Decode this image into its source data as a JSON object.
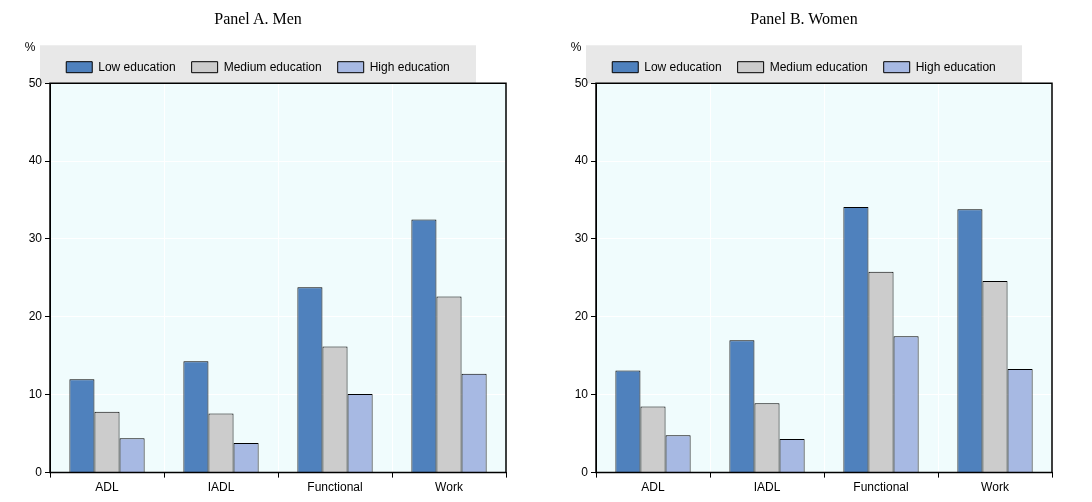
{
  "chart_data": [
    {
      "type": "bar",
      "title": "Panel A. Men",
      "ylabel": "%",
      "categories": [
        "ADL",
        "IADL",
        "Functional",
        "Work"
      ],
      "series": [
        {
          "name": "Low education",
          "color": "#4f81bd",
          "values": [
            12,
            14.3,
            23.8,
            32.5
          ]
        },
        {
          "name": "Medium education",
          "color": "#cccccc",
          "values": [
            7.8,
            7.6,
            16.2,
            22.6
          ]
        },
        {
          "name": "High education",
          "color": "#a7b9e3",
          "values": [
            4.4,
            3.8,
            10.1,
            12.7
          ]
        }
      ],
      "ylim": [
        0,
        50
      ],
      "yticks": [
        0,
        10,
        20,
        30,
        40,
        50
      ],
      "legend": "top",
      "grid": true
    },
    {
      "type": "bar",
      "title": "Panel B. Women",
      "ylabel": "%",
      "categories": [
        "ADL",
        "IADL",
        "Functional",
        "Work"
      ],
      "series": [
        {
          "name": "Low education",
          "color": "#4f81bd",
          "values": [
            13.1,
            17,
            34.1,
            33.8
          ]
        },
        {
          "name": "Medium education",
          "color": "#cccccc",
          "values": [
            8.5,
            8.9,
            25.8,
            24.6
          ]
        },
        {
          "name": "High education",
          "color": "#a7b9e3",
          "values": [
            4.8,
            4.3,
            17.5,
            13.3
          ]
        }
      ],
      "ylim": [
        0,
        50
      ],
      "yticks": [
        0,
        10,
        20,
        30,
        40,
        50
      ],
      "legend": "top",
      "grid": true
    }
  ]
}
